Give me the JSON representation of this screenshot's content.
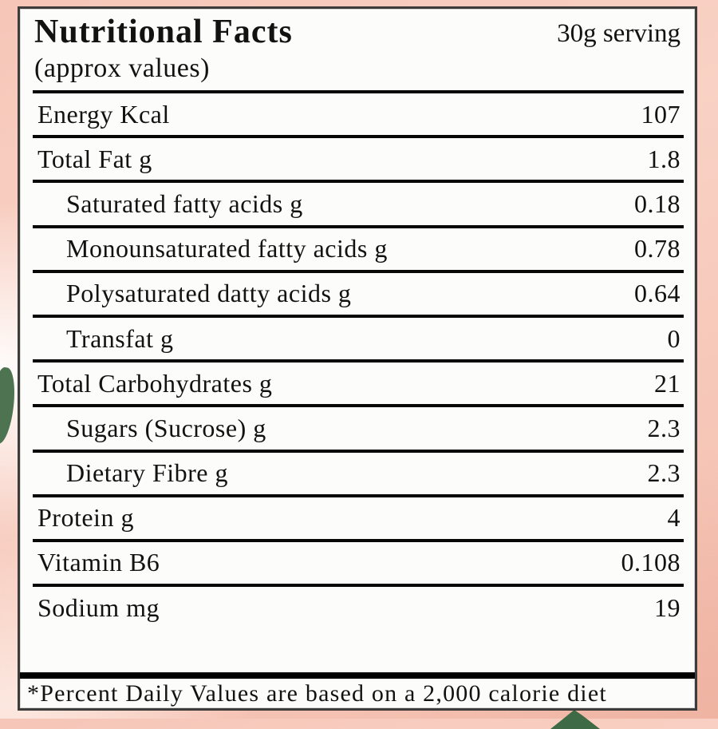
{
  "label": {
    "title": "Nutritional Facts",
    "subtitle": "(approx values)",
    "serving": "30g serving",
    "rows": [
      {
        "name": "Energy Kcal",
        "value": "107",
        "indent": false
      },
      {
        "name": "Total Fat g",
        "value": "1.8",
        "indent": false
      },
      {
        "name": "Saturated fatty acids g",
        "value": "0.18",
        "indent": true
      },
      {
        "name": "Monounsaturated fatty acids g",
        "value": "0.78",
        "indent": true
      },
      {
        "name": "Polysaturated datty acids g",
        "value": "0.64",
        "indent": true
      },
      {
        "name": "Transfat g",
        "value": "0",
        "indent": true
      },
      {
        "name": "Total Carbohydrates g",
        "value": "21",
        "indent": false
      },
      {
        "name": "Sugars (Sucrose) g",
        "value": "2.3",
        "indent": true
      },
      {
        "name": "Dietary Fibre g",
        "value": "2.3",
        "indent": true
      },
      {
        "name": "Protein g",
        "value": "4",
        "indent": false
      },
      {
        "name": "Vitamin B6",
        "value": "0.108",
        "indent": false
      },
      {
        "name": "Sodium mg",
        "value": "19",
        "indent": false
      }
    ],
    "footnote": "*Percent Daily Values are based on a 2,000 calorie diet"
  },
  "colors": {
    "background_pink": "#f3bcac",
    "box_background": "#fcfcfa",
    "rule_black": "#070707",
    "leaf_green": "#4e7350"
  }
}
